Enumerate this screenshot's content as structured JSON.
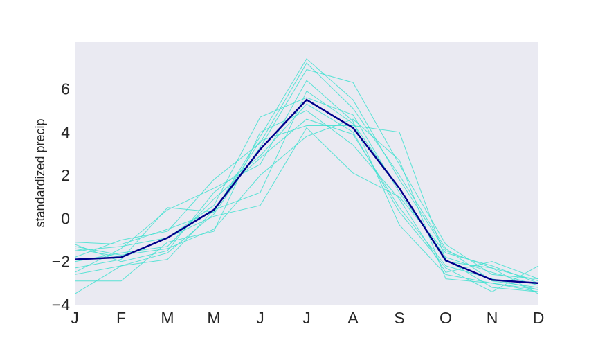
{
  "chart_data": {
    "type": "line",
    "title": "",
    "xlabel": "",
    "ylabel": "standardized precip",
    "x": [
      "J",
      "F",
      "M",
      "M",
      "J",
      "J",
      "A",
      "S",
      "O",
      "N",
      "D"
    ],
    "ylim": [
      -4,
      8.2
    ],
    "yticks": [
      -4,
      -2,
      0,
      2,
      4,
      6
    ],
    "ytick_labels": [
      "−4",
      "−2",
      "0",
      "2",
      "4",
      "6"
    ],
    "grid": false,
    "background": "#eaeaf2",
    "ensemble_color": "#40e0d0",
    "mean_color": "#00008b",
    "ensemble": [
      [
        -1.1,
        -1.2,
        -0.5,
        0.3,
        3.8,
        7.4,
        5.5,
        1.8,
        -1.5,
        -2.3,
        -2.9
      ],
      [
        -1.4,
        -1.8,
        -0.9,
        0.6,
        4.7,
        5.6,
        4.8,
        1.2,
        -1.8,
        -2.5,
        -3.1
      ],
      [
        -2.0,
        -1.6,
        -1.3,
        0.9,
        2.8,
        4.6,
        3.9,
        0.5,
        -2.2,
        -2.8,
        -3.3
      ],
      [
        -3.5,
        -2.2,
        -1.6,
        0.2,
        3.3,
        6.9,
        6.3,
        2.5,
        -1.2,
        -2.6,
        -2.8
      ],
      [
        -2.3,
        -1.9,
        0.5,
        0.3,
        3.6,
        4.3,
        4.3,
        4.0,
        -1.9,
        -3.2,
        -3.4
      ],
      [
        -2.9,
        -2.9,
        -1.1,
        -0.6,
        4.0,
        5.0,
        3.4,
        0.9,
        -2.5,
        -2.0,
        -2.8
      ],
      [
        -1.8,
        -1.0,
        -0.6,
        1.8,
        3.5,
        7.2,
        5.1,
        2.0,
        -1.4,
        -2.9,
        -3.2
      ],
      [
        -2.6,
        -2.2,
        -1.9,
        0.4,
        1.2,
        5.9,
        4.4,
        1.4,
        -2.0,
        -2.3,
        -3.5
      ],
      [
        -1.5,
        -1.3,
        -0.9,
        0.1,
        0.6,
        4.2,
        2.1,
        1.0,
        -1.6,
        -2.2,
        -3.0
      ],
      [
        -1.3,
        -1.7,
        -1.4,
        -0.5,
        2.0,
        3.8,
        4.6,
        2.7,
        -2.8,
        -3.0,
        -3.4
      ],
      [
        -1.2,
        -2.0,
        -1.5,
        1.2,
        2.9,
        5.3,
        4.0,
        0.3,
        -2.3,
        -3.4,
        -2.2
      ],
      [
        -2.5,
        -1.4,
        0.4,
        1.4,
        2.5,
        6.4,
        4.5,
        -0.3,
        -2.6,
        -3.0,
        -3.3
      ]
    ],
    "mean": [
      -1.9,
      -1.8,
      -0.9,
      0.4,
      3.2,
      5.5,
      4.2,
      1.4,
      -1.95,
      -2.85,
      -3.0
    ]
  }
}
